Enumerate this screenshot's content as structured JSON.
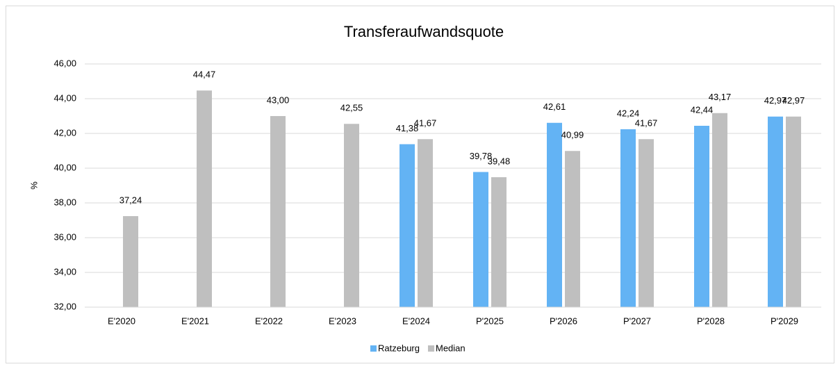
{
  "chart_data": {
    "type": "bar",
    "title": "Transferaufwandsquote",
    "y_label": "%",
    "categories": [
      "E'2020",
      "E'2021",
      "E'2022",
      "E'2023",
      "E'2024",
      "P'2025",
      "P'2026",
      "P'2027",
      "P'2028",
      "P'2029"
    ],
    "series": [
      {
        "name": "Ratzeburg",
        "color": "#63b3f4",
        "values": [
          null,
          null,
          null,
          null,
          41.38,
          39.78,
          42.61,
          42.24,
          42.44,
          42.97
        ],
        "value_labels": [
          null,
          null,
          null,
          null,
          "41,38",
          "39,78",
          "42,61",
          "42,24",
          "42,44",
          "42,97"
        ]
      },
      {
        "name": "Median",
        "color": "#bfbfbf",
        "values": [
          37.24,
          44.47,
          43.0,
          42.55,
          41.67,
          39.48,
          40.99,
          41.67,
          43.17,
          42.97
        ],
        "value_labels": [
          "37,24",
          "44,47",
          "43,00",
          "42,55",
          "41,67",
          "39,48",
          "40,99",
          "41,67",
          "43,17",
          "42,97"
        ]
      }
    ],
    "ylim": [
      32,
      46
    ],
    "yticks": [
      {
        "value": 32,
        "label": "32,00"
      },
      {
        "value": 34,
        "label": "34,00"
      },
      {
        "value": 36,
        "label": "36,00"
      },
      {
        "value": 38,
        "label": "38,00"
      },
      {
        "value": 40,
        "label": "40,00"
      },
      {
        "value": 42,
        "label": "42,00"
      },
      {
        "value": 44,
        "label": "44,00"
      },
      {
        "value": 46,
        "label": "46,00"
      }
    ],
    "grid": true,
    "legend": "bottom"
  }
}
